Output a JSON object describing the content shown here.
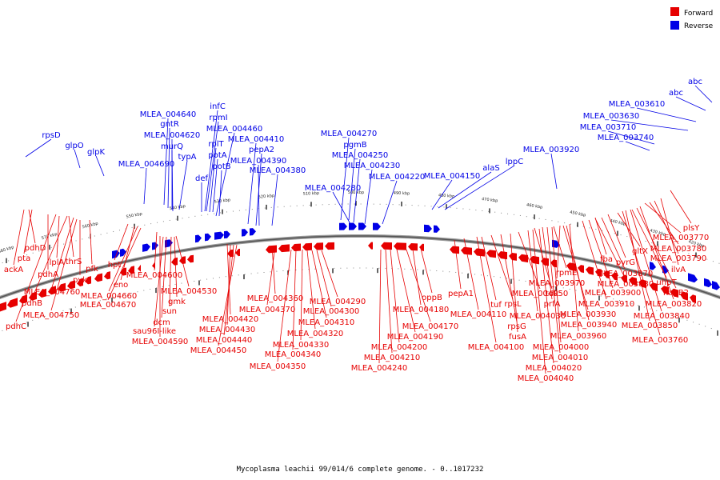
{
  "legend": {
    "forward": {
      "label": "Forward",
      "color": "#e60000"
    },
    "reverse": {
      "label": "Reverse",
      "color": "#0000e6"
    }
  },
  "caption": "Mycoplasma leachii 99/014/6 complete genome. - 0..1017232",
  "ticks": [
    "580 kbp",
    "570 kbp",
    "560 kbp",
    "550 kbp",
    "540 kbp",
    "530 kbp",
    "520 kbp",
    "510 kbp",
    "500 kbp",
    "490 kbp",
    "480 kbp",
    "470 kbp",
    "460 kbp",
    "450 kbp",
    "440 kbp",
    "430 kbp",
    "420 kbp"
  ],
  "reverse_labels": [
    "rpsD",
    "glpO",
    "glpK",
    "MLEA_004690",
    "MLEA_004640",
    "gntR",
    "MLEA_004620",
    "murQ",
    "typA",
    "def",
    "rplT",
    "potA",
    "potB",
    "infC",
    "rpmI",
    "MLEA_004460",
    "MLEA_004410",
    "pepA2",
    "MLEA_004390",
    "MLEA_004380",
    "MLEA_004270",
    "pgmB",
    "MLEA_004250",
    "MLEA_004230",
    "MLEA_004220",
    "MLEA_004280",
    "MLEA_004150",
    "alaS",
    "lppC",
    "MLEA_003920",
    "MLEA_003740",
    "MLEA_003710",
    "MLEA_003630",
    "MLEA_003610",
    "abc",
    "abc"
  ],
  "forward_labels": [
    "pdhD",
    "pta",
    "ackA",
    "pdhA",
    "lplA",
    "thrS",
    "pyk",
    "pfk",
    "hpt",
    "eno",
    "MLEA_004660",
    "MLEA_004670",
    "MLEA_004760",
    "MLEA_004750",
    "pdhB",
    "pdhC",
    "MLEA_004600",
    "MLEA_004530",
    "gmk",
    "sun",
    "dcm",
    "sau96I-like",
    "MLEA_004590",
    "MLEA_004360",
    "MLEA_004370",
    "MLEA_004420",
    "MLEA_004430",
    "MLEA_004440",
    "MLEA_004450",
    "MLEA_004290",
    "MLEA_004300",
    "MLEA_004310",
    "MLEA_004320",
    "MLEA_004330",
    "MLEA_004340",
    "MLEA_004350",
    "oppB",
    "MLEA_004180",
    "MLEA_004170",
    "MLEA_004190",
    "MLEA_004200",
    "MLEA_004210",
    "MLEA_004240",
    "pepA1",
    "MLEA_004110",
    "MLEA_004100",
    "tuf",
    "rpsL",
    "rpsG",
    "fusA",
    "MLEA_004050",
    "MLEA_004030",
    "tdk",
    "prfA",
    "rpmE",
    "MLEA_003970",
    "MLEA_004000",
    "MLEA_004010",
    "MLEA_004020",
    "MLEA_004040",
    "MLEA_003930",
    "MLEA_003940",
    "MLEA_003960",
    "MLEA_003910",
    "MLEA_003900",
    "MLEA_003880",
    "MLEA_003870",
    "fba",
    "pyrG",
    "gltX",
    "uhpT",
    "nagB2",
    "MLEA_003820",
    "MLEA_003840",
    "MLEA_003850",
    "MLEA_003760",
    "MLEA_003770",
    "MLEA_003780",
    "MLEA_003790",
    "ilvA",
    "plsY"
  ]
}
